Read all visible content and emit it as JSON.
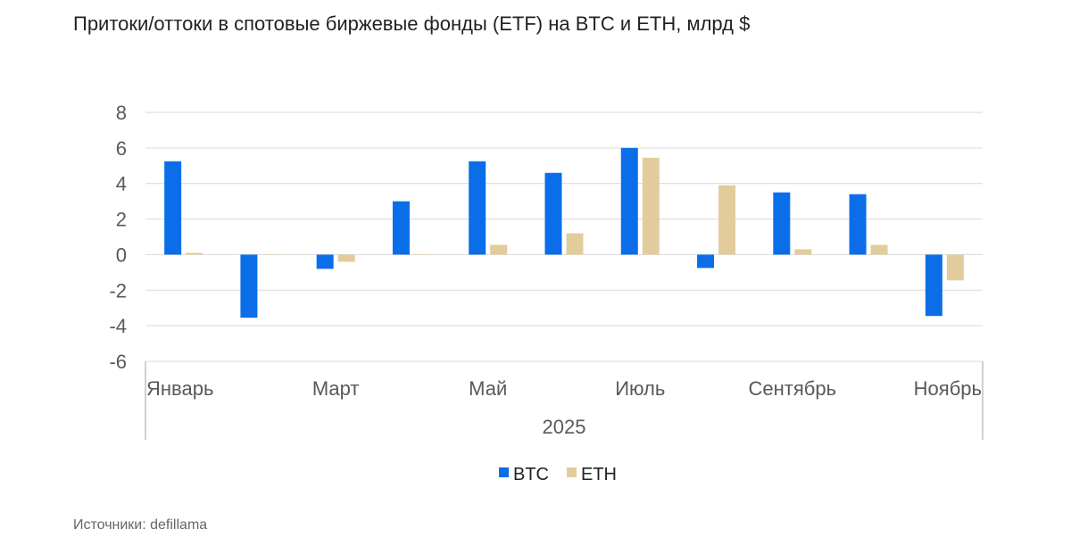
{
  "title": "Притоки/оттоки в спотовые биржевые фонды (ETF) на BTC и ETH, млрд $",
  "source": "Источники: defillama",
  "colors": {
    "BTC": "#0b6ee8",
    "ETH": "#e3cc9c",
    "grid": "#d9d9d9",
    "axis": "#bfbfbf"
  },
  "chart_data": {
    "type": "bar",
    "months": [
      "1",
      "2",
      "3",
      "4",
      "5",
      "6",
      "7",
      "8",
      "9",
      "10",
      "11"
    ],
    "category_labels": [
      {
        "index": 0,
        "label": "Январь"
      },
      {
        "index": 2,
        "label": "Март"
      },
      {
        "index": 4,
        "label": "Май"
      },
      {
        "index": 6,
        "label": "Июль"
      },
      {
        "index": 8,
        "label": "Сентябрь"
      },
      {
        "index": 10,
        "label": "Ноябрь"
      }
    ],
    "group_label": "2025",
    "series": [
      {
        "name": "BTC",
        "values": [
          5.25,
          -3.55,
          -0.8,
          3.0,
          5.25,
          4.6,
          6.0,
          -0.75,
          3.5,
          3.4,
          -3.45
        ]
      },
      {
        "name": "ETH",
        "values": [
          0.1,
          0.0,
          -0.4,
          0.0,
          0.55,
          1.2,
          5.45,
          3.9,
          0.3,
          0.55,
          -1.45
        ]
      }
    ],
    "ylim": [
      -6,
      8
    ],
    "yticks": [
      8,
      6,
      4,
      2,
      0,
      -2,
      -4,
      -6
    ],
    "grid": true,
    "legend": "bottom-center"
  }
}
